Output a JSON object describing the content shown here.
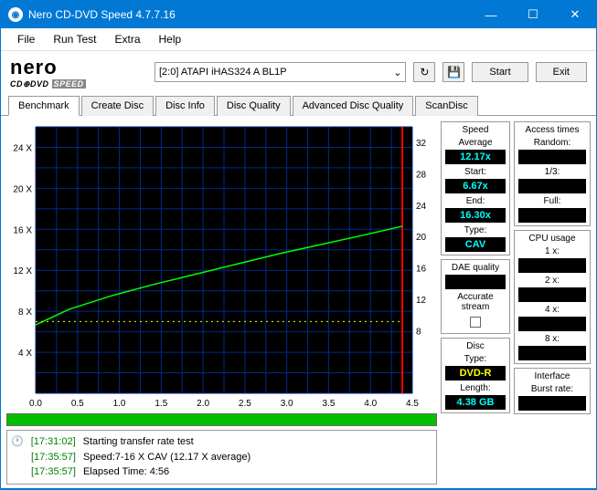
{
  "window": {
    "title": "Nero CD-DVD Speed 4.7.7.16"
  },
  "menu": {
    "file": "File",
    "run": "Run Test",
    "extra": "Extra",
    "help": "Help"
  },
  "logo": {
    "brand": "nero",
    "sub_pre": "CD⊕DVD",
    "sub_speed": "SPEED"
  },
  "drive": {
    "selected": "[2:0]   ATAPI iHAS324   A BL1P"
  },
  "buttons": {
    "start": "Start",
    "exit": "Exit"
  },
  "tabs": {
    "benchmark": "Benchmark",
    "create": "Create Disc",
    "info": "Disc Info",
    "quality": "Disc Quality",
    "advq": "Advanced Disc Quality",
    "scan": "ScanDisc"
  },
  "chart": {
    "xlim": [
      0,
      4.5
    ],
    "ylim_left": [
      0,
      26
    ],
    "ylim_right": [
      0,
      34
    ],
    "x_ticks": [
      "0.0",
      "0.5",
      "1.0",
      "1.5",
      "2.0",
      "2.5",
      "3.0",
      "3.5",
      "4.0",
      "4.5"
    ],
    "y_ticks_left": [
      "4 X",
      "8 X",
      "12 X",
      "16 X",
      "20 X",
      "24 X"
    ],
    "y_ticks_right": [
      "8",
      "12",
      "16",
      "20",
      "24",
      "28",
      "32"
    ],
    "plot_bg": "#000000",
    "grid_color": "#002a8a",
    "green_line_color": "#00ff00",
    "yellow_line_color": "#ffff00",
    "red_limit_color": "#ff0000",
    "transfer_x": [
      0,
      0.4,
      0.9,
      1.4,
      1.9,
      2.4,
      2.9,
      3.4,
      3.9,
      4.38
    ],
    "transfer_y": [
      6.67,
      8.2,
      9.5,
      10.6,
      11.6,
      12.6,
      13.6,
      14.5,
      15.4,
      16.3
    ],
    "seek_y": 7.0,
    "red_x": 4.38
  },
  "log": {
    "l1_ts": "[17:31:02]",
    "l1_tx": "Starting transfer rate test",
    "l2_ts": "[17:35:57]",
    "l2_tx": "Speed:7-16 X CAV (12.17 X average)",
    "l3_ts": "[17:35:57]",
    "l3_tx": "Elapsed Time:   4:56"
  },
  "speed": {
    "title": "Speed",
    "avg_l": "Average",
    "avg_v": "12.17x",
    "start_l": "Start:",
    "start_v": "6.67x",
    "end_l": "End:",
    "end_v": "16.30x",
    "type_l": "Type:",
    "type_v": "CAV"
  },
  "dae": {
    "title": "DAE quality",
    "acc_l": "Accurate stream"
  },
  "disc": {
    "title": "Disc",
    "type_l": "Type:",
    "type_v": "DVD-R",
    "len_l": "Length:",
    "len_v": "4.38 GB"
  },
  "access": {
    "title": "Access times",
    "rnd": "Random:",
    "third": "1/3:",
    "full": "Full:"
  },
  "cpu": {
    "title": "CPU usage",
    "x1": "1 x:",
    "x2": "2 x:",
    "x4": "4 x:",
    "x8": "8 x:"
  },
  "iface": {
    "title": "Interface",
    "burst": "Burst rate:"
  }
}
